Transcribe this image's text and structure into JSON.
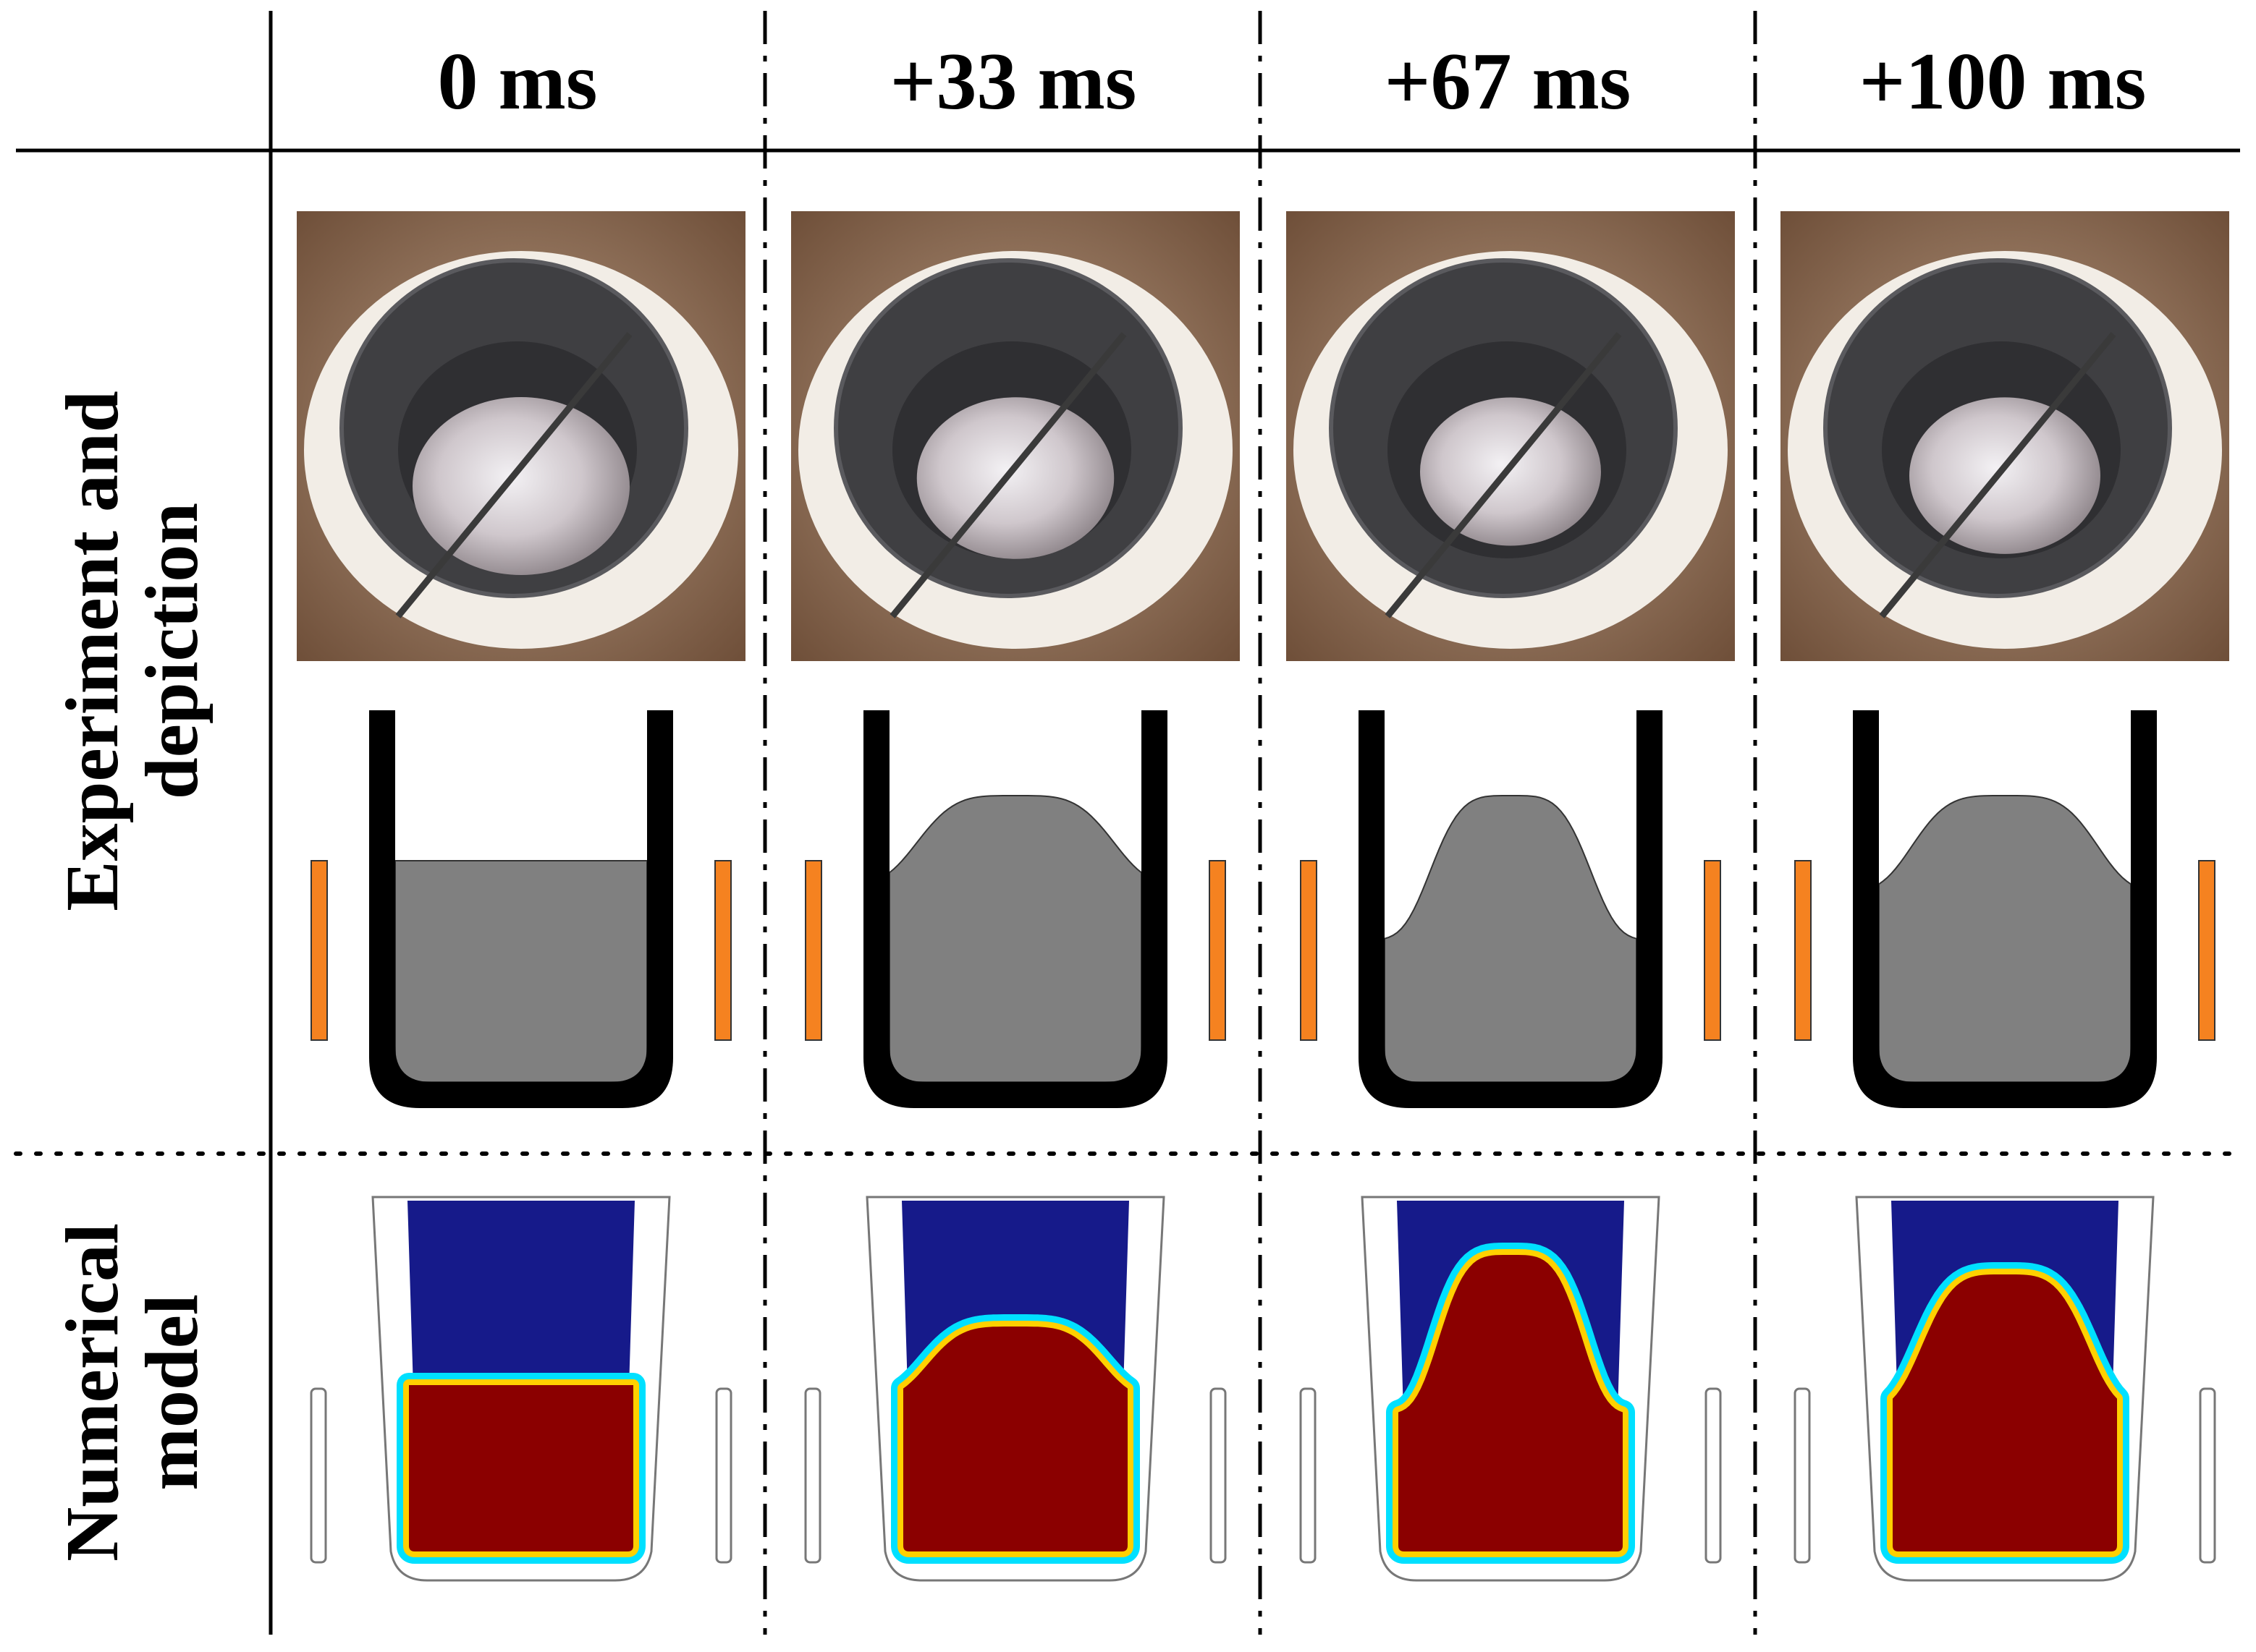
{
  "columns": [
    {
      "label": "0 ms"
    },
    {
      "label": "+33 ms"
    },
    {
      "label": "+67 ms"
    },
    {
      "label": "+100 ms"
    }
  ],
  "rows": {
    "experiment": {
      "line1": "Experiment and",
      "line2": "depiction"
    },
    "numerical": {
      "line1": "Numerical",
      "line2": "model"
    }
  },
  "colors": {
    "crucible_wall": "#000000",
    "melt": "#808080",
    "coil": "#f58220",
    "field_high": "#8b0000",
    "field_low": "#161a8a",
    "insulation": "#f2ede6",
    "crucible_photo": "#3f3f42"
  },
  "icons": [
    "photo-crucible-icon",
    "induction-coil-icon",
    "melt-dome-icon",
    "simulation-field-icon"
  ],
  "frames": [
    {
      "dome_height": 0.0,
      "dome_width": 0.0,
      "sim_dome": 0.0
    },
    {
      "dome_height": 0.55,
      "dome_width": 0.55,
      "sim_dome": 0.45
    },
    {
      "dome_height": 1.0,
      "dome_width": 0.45,
      "sim_dome": 1.0
    },
    {
      "dome_height": 0.72,
      "dome_width": 0.52,
      "sim_dome": 0.85
    }
  ]
}
